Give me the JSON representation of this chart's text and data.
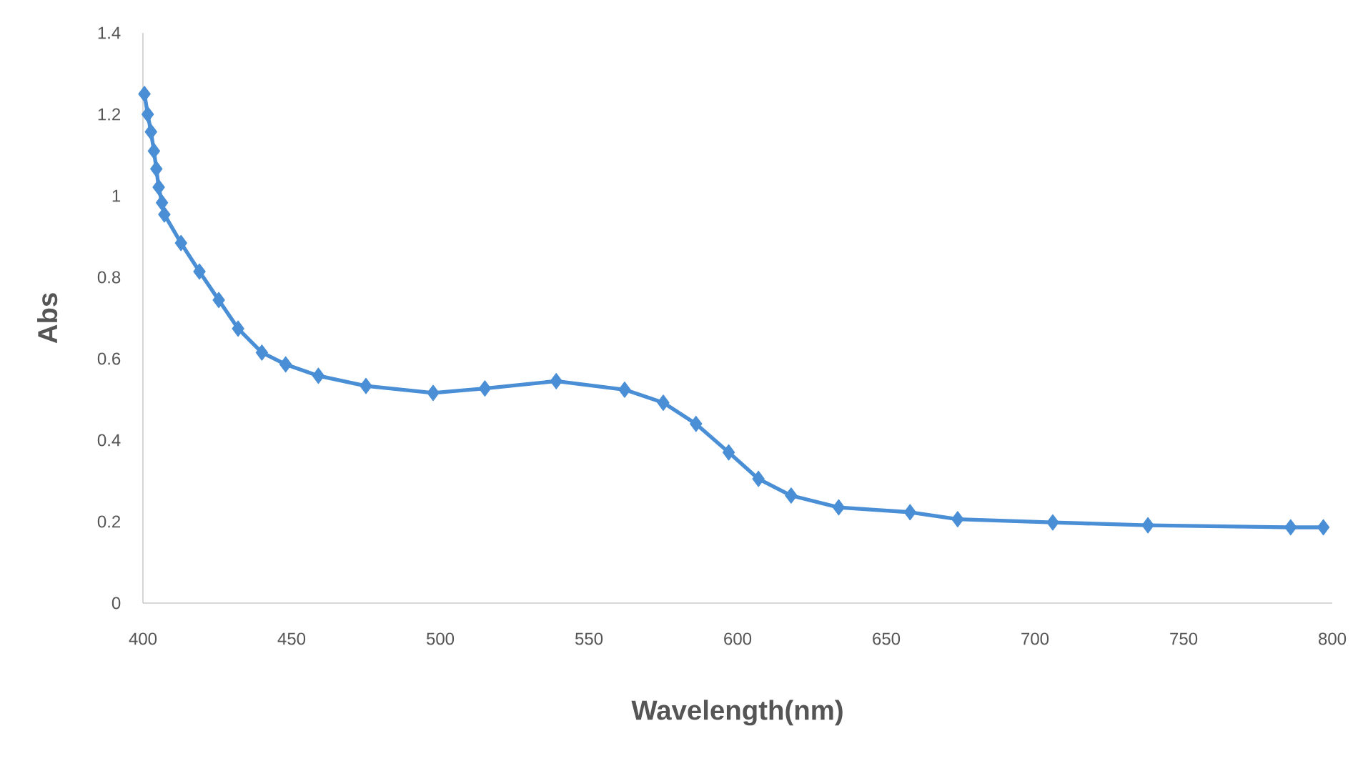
{
  "chart_data": {
    "type": "line",
    "xlabel": "Wavelength(nm)",
    "ylabel": "Abs",
    "x": [
      400.5,
      401.6,
      402.7,
      403.7,
      404.5,
      405.3,
      406.4,
      407.2,
      412.8,
      419,
      425.5,
      432,
      440,
      448,
      459,
      475,
      497.6,
      515,
      539,
      562,
      575,
      586,
      597,
      607,
      618,
      634,
      658,
      674,
      706,
      738,
      786,
      797
    ],
    "series": [
      {
        "color": "#4a8fd6",
        "values": [
          1.25,
          1.2,
          1.157,
          1.11,
          1.066,
          1.021,
          0.983,
          0.954,
          0.884,
          0.814,
          0.744,
          0.674,
          0.615,
          0.586,
          0.558,
          0.533,
          0.516,
          0.527,
          0.545,
          0.524,
          0.492,
          0.44,
          0.37,
          0.305,
          0.264,
          0.235,
          0.223,
          0.206,
          0.198,
          0.191,
          0.186,
          0.186
        ]
      }
    ],
    "xlim": [
      400,
      800
    ],
    "ylim": [
      0,
      1.4
    ],
    "xticks": [
      400,
      450,
      500,
      550,
      600,
      650,
      700,
      750,
      800
    ],
    "yticks": [
      0,
      0.2,
      0.4,
      0.6,
      0.8,
      1,
      1.2,
      1.4
    ],
    "marker": "diamond",
    "line_style": "solid"
  }
}
